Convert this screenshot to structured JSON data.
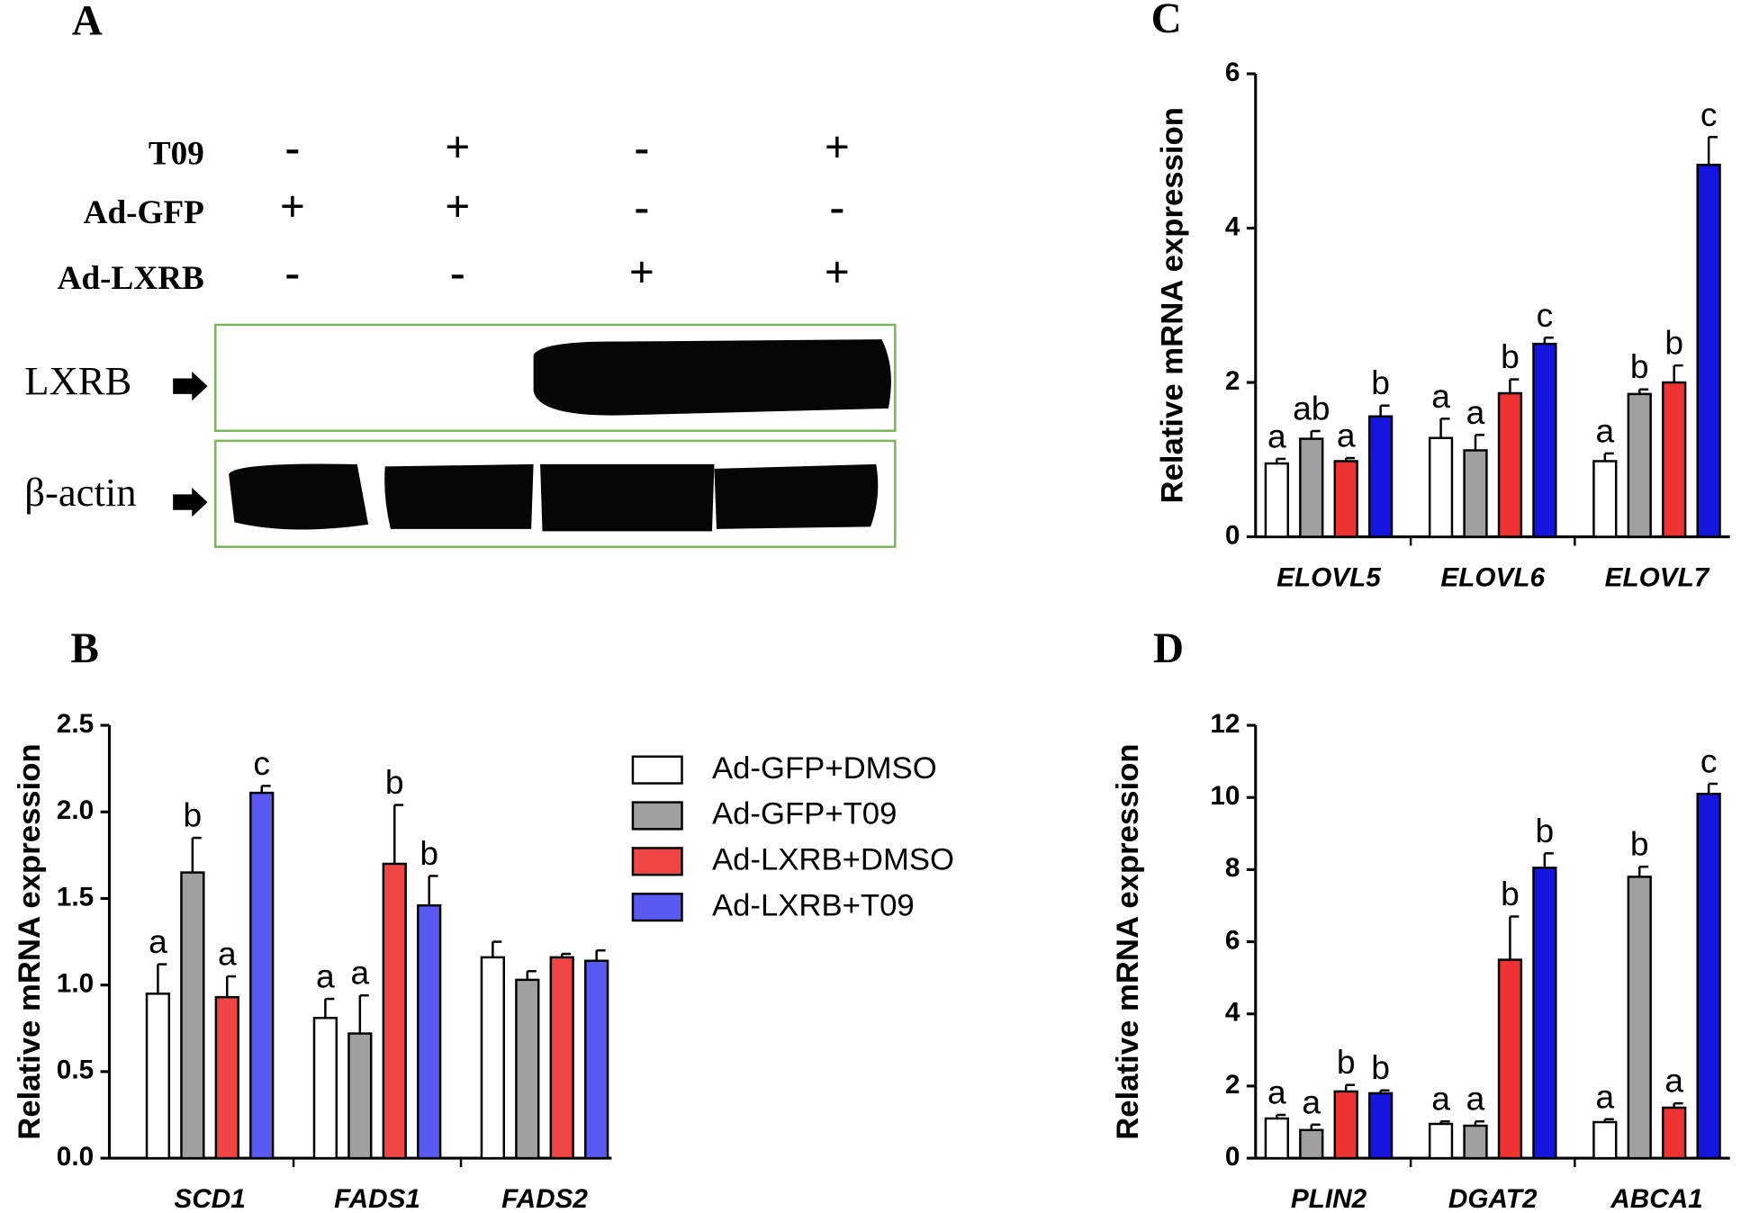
{
  "blot": {
    "panel": "A",
    "rows": [
      {
        "label": "T09",
        "signs": [
          "-",
          "+",
          "-",
          "+"
        ]
      },
      {
        "label": "Ad-GFP",
        "signs": [
          "+",
          "+",
          "-",
          "-"
        ]
      },
      {
        "label": "Ad-LXRB",
        "signs": [
          "-",
          "-",
          "+",
          "+"
        ]
      }
    ],
    "bands": [
      "LXRB",
      "β-actin"
    ]
  },
  "chart_data": [
    {
      "type": "bar",
      "panel": "B",
      "y_label": "Relative mRNA expression",
      "categories": [
        "SCD1",
        "FADS1",
        "FADS2"
      ],
      "ylim": [
        0,
        2.5
      ],
      "yticks": [
        {
          "value": 0,
          "label": "0.0"
        },
        0.5,
        {
          "value": 1,
          "label": "1.0"
        },
        1.5,
        {
          "value": 2,
          "label": "2.0"
        },
        2.5
      ],
      "legend": "right",
      "series": [
        {
          "name": "Ad-GFP+DMSO",
          "color": "#ffffff",
          "values": [
            0.95,
            0.81,
            1.16
          ],
          "errors": [
            0.17,
            0.11,
            0.09
          ],
          "letters": [
            "a",
            "a",
            null
          ]
        },
        {
          "name": "Ad-GFP+T09",
          "color": "#a0a0a0",
          "values": [
            1.65,
            0.72,
            1.03
          ],
          "errors": [
            0.2,
            0.22,
            0.05
          ],
          "letters": [
            "b",
            "a",
            null
          ]
        },
        {
          "name": "Ad-LXRB+DMSO",
          "color": "#f04545",
          "values": [
            0.93,
            1.7,
            1.16
          ],
          "errors": [
            0.12,
            0.34,
            0.02
          ],
          "letters": [
            "a",
            "b",
            null
          ]
        },
        {
          "name": "Ad-LXRB+T09",
          "color": "#5a5af0",
          "values": [
            2.11,
            1.46,
            1.14
          ],
          "errors": [
            0.04,
            0.17,
            0.06
          ],
          "letters": [
            "c",
            "b",
            null
          ]
        }
      ]
    },
    {
      "type": "bar",
      "panel": "C",
      "y_label": "Relative mRNA expression",
      "categories": [
        "ELOVL5",
        "ELOVL6",
        "ELOVL7"
      ],
      "ylim": [
        0,
        6
      ],
      "yticks": [
        0,
        2,
        4,
        6
      ],
      "series": [
        {
          "color": "#ffffff",
          "values": [
            0.95,
            1.28,
            0.98
          ],
          "errors": [
            0.06,
            0.25,
            0.1
          ],
          "letters": [
            "a",
            "a",
            "a"
          ]
        },
        {
          "color": "#a0a0a0",
          "values": [
            1.27,
            1.12,
            1.85
          ],
          "errors": [
            0.1,
            0.2,
            0.06
          ],
          "letters": [
            "ab",
            "a",
            "b"
          ]
        },
        {
          "color": "#ee3333",
          "values": [
            0.98,
            1.86,
            2.0
          ],
          "errors": [
            0.04,
            0.18,
            0.22
          ],
          "letters": [
            "a",
            "b",
            "b"
          ]
        },
        {
          "color": "#1515dd",
          "values": [
            1.56,
            2.5,
            4.82
          ],
          "errors": [
            0.14,
            0.08,
            0.36
          ],
          "letters": [
            "b",
            "c",
            "c"
          ]
        }
      ]
    },
    {
      "type": "bar",
      "panel": "D",
      "y_label": "Relative mRNA expression",
      "categories": [
        "PLIN2",
        "DGAT2",
        "ABCA1"
      ],
      "ylim": [
        0,
        12
      ],
      "yticks": [
        0,
        2,
        4,
        6,
        8,
        10,
        12
      ],
      "series": [
        {
          "color": "#ffffff",
          "values": [
            1.1,
            0.95,
            1.0
          ],
          "errors": [
            0.1,
            0.07,
            0.08
          ],
          "letters": [
            "a",
            "a",
            "a"
          ]
        },
        {
          "color": "#a0a0a0",
          "values": [
            0.78,
            0.9,
            7.8
          ],
          "errors": [
            0.15,
            0.12,
            0.28
          ],
          "letters": [
            "a",
            "a",
            "b"
          ]
        },
        {
          "color": "#ee3333",
          "values": [
            1.85,
            5.5,
            1.4
          ],
          "errors": [
            0.18,
            1.2,
            0.12
          ],
          "letters": [
            "b",
            "b",
            "a"
          ]
        },
        {
          "color": "#1515dd",
          "values": [
            1.8,
            8.05,
            10.1
          ],
          "errors": [
            0.08,
            0.4,
            0.28
          ],
          "letters": [
            "b",
            "b",
            "c"
          ]
        }
      ]
    }
  ]
}
